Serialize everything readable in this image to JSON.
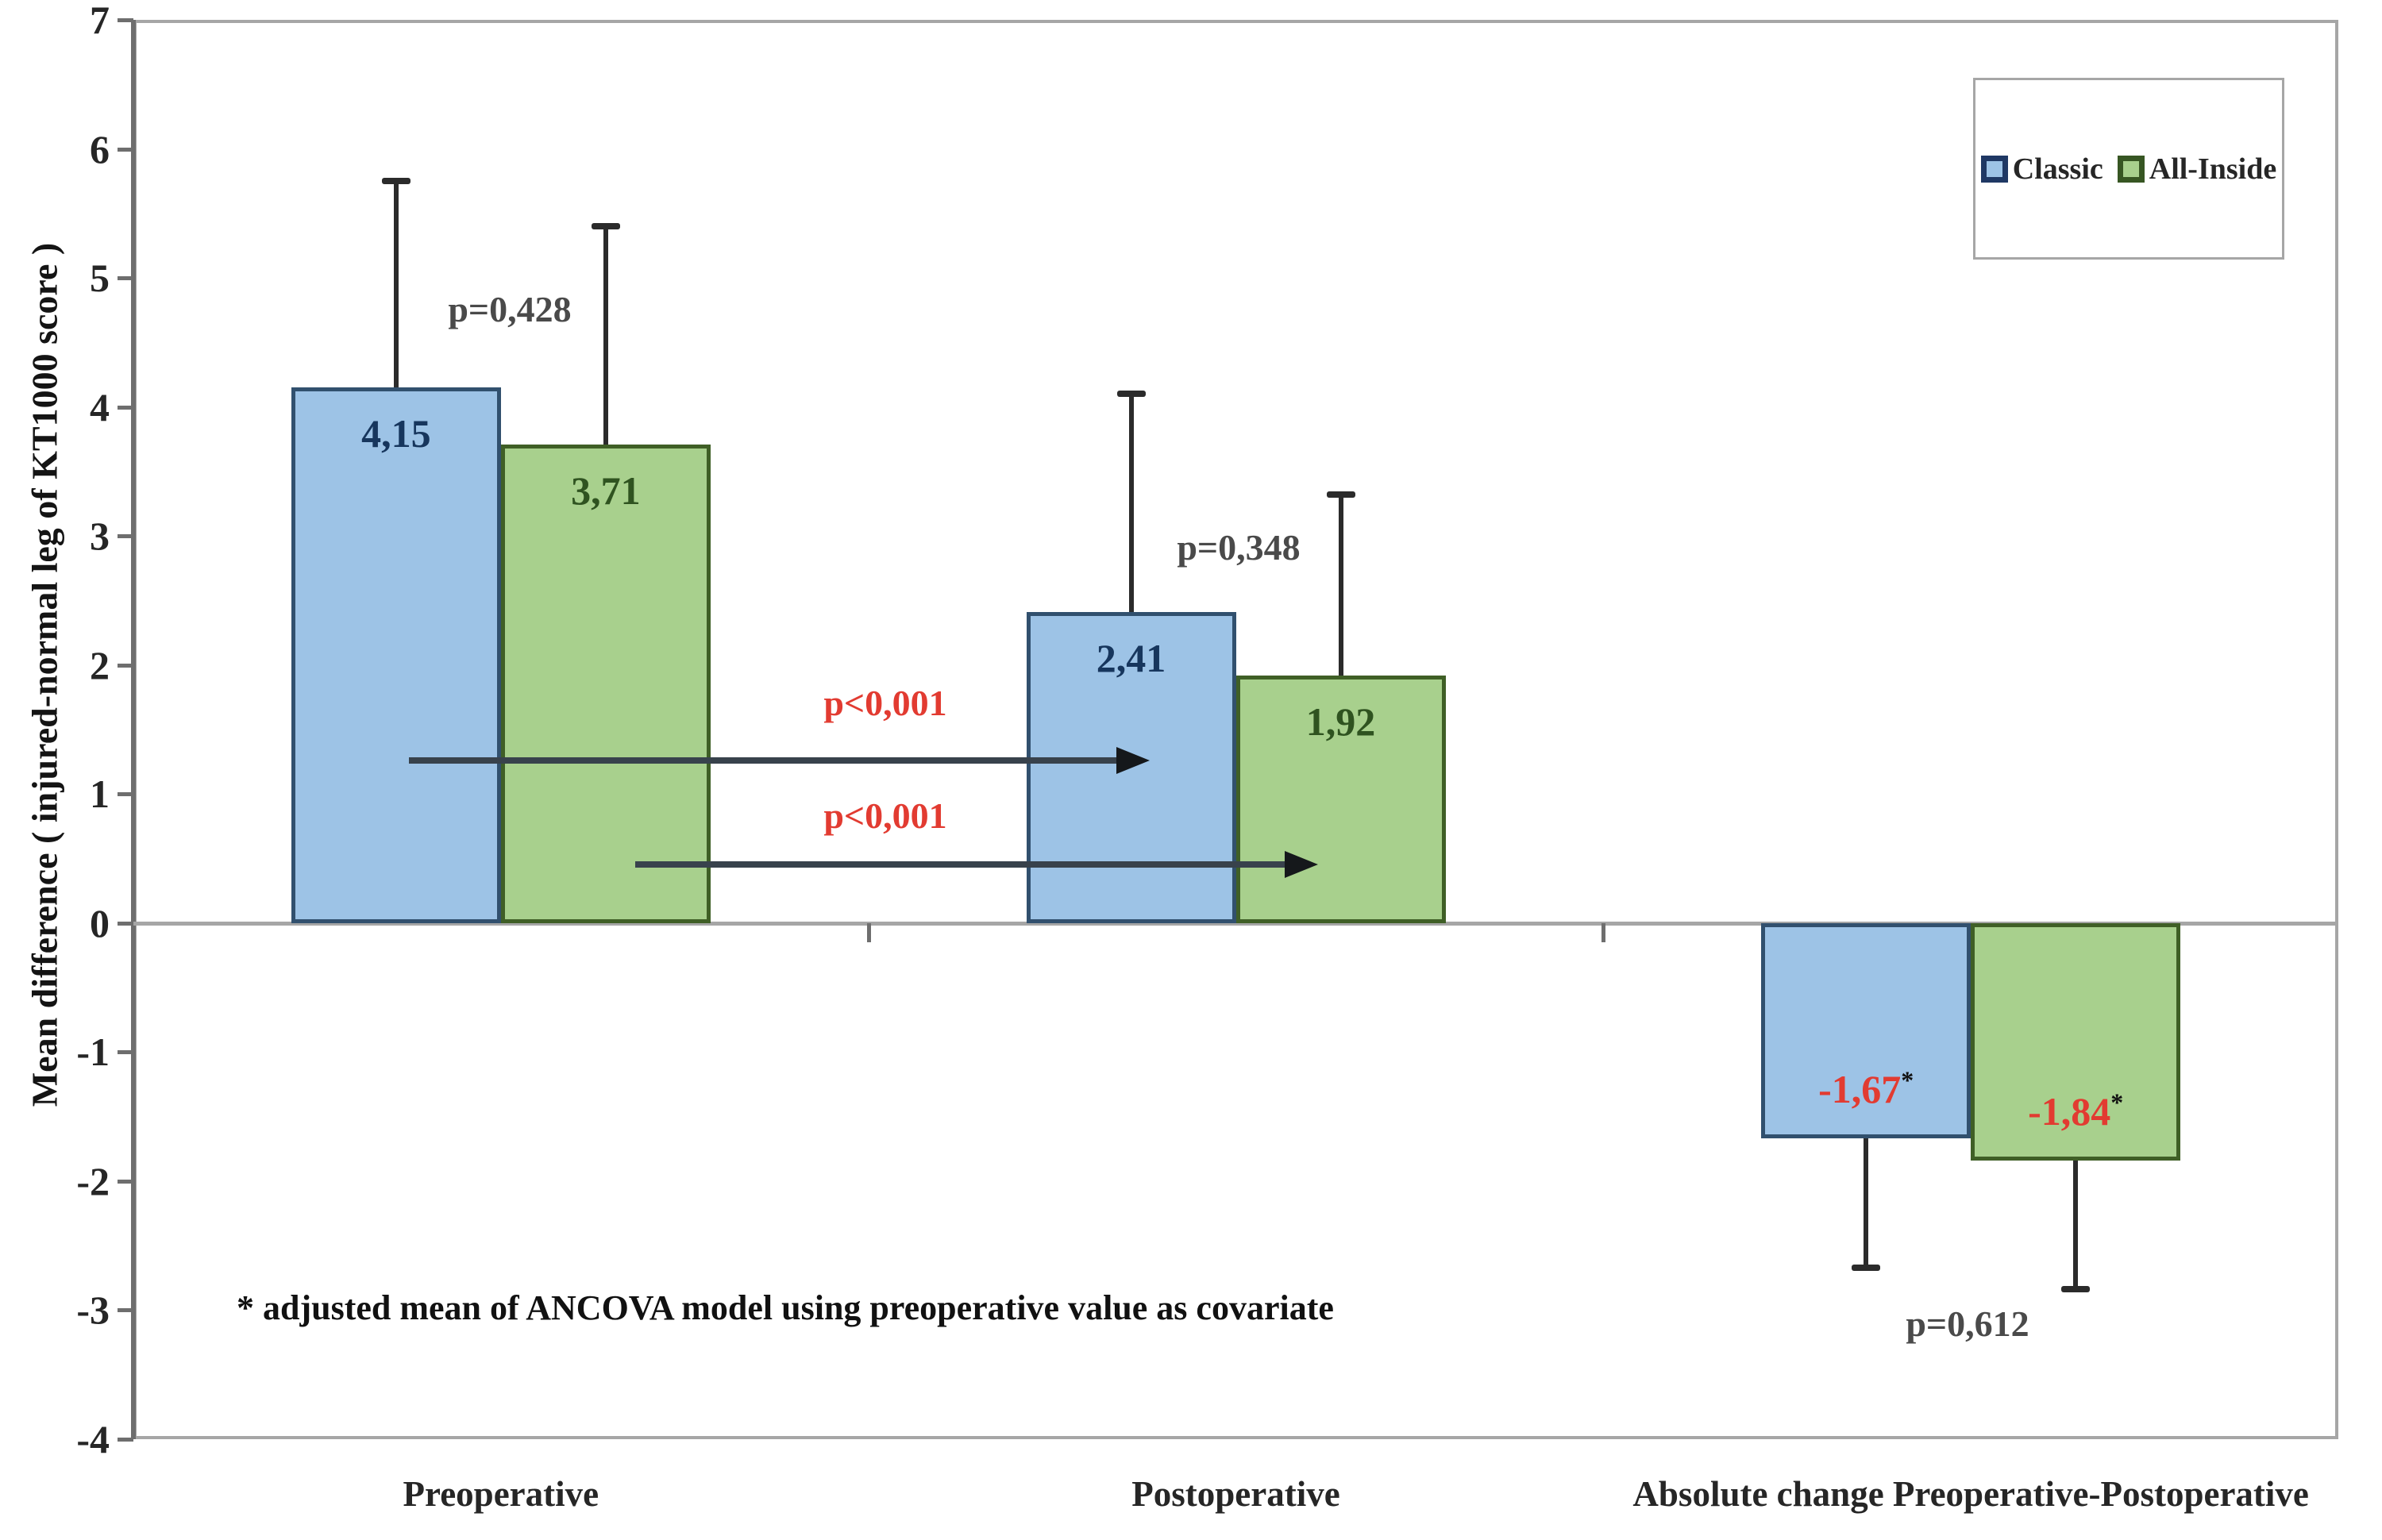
{
  "chart_data": {
    "type": "bar",
    "title": "",
    "ylabel": "Mean difference ( injured-normal leg of KT1000 score )",
    "xlabel": "",
    "ylim": [
      -4,
      7
    ],
    "ytick_step": 1,
    "grid": "zero-line-only",
    "legend_position": "top-right",
    "categories": [
      "Preoperative",
      "Postoperative",
      "Absolute change Preoperative-Postoperative"
    ],
    "series": [
      {
        "name": "Classic",
        "values": [
          4.15,
          2.41,
          -1.67
        ],
        "value_labels": [
          "4,15",
          "2,41",
          "-1,67*"
        ],
        "error_tips": [
          5.75,
          4.1,
          -2.67
        ],
        "fill": "#9DC3E6",
        "border": "#31506E",
        "label_color": "#17365D",
        "marker_border": "#1F3864"
      },
      {
        "name": "All-Inside",
        "values": [
          3.71,
          1.92,
          -1.84
        ],
        "value_labels": [
          "3,71",
          "1,92",
          "-1,84*"
        ],
        "error_tips": [
          5.4,
          3.32,
          -2.84
        ],
        "fill": "#A8D08D",
        "border": "#3F5F26",
        "label_color": "#2F5320",
        "marker_border": "#375623"
      }
    ],
    "starred_value_color": "#E23B31",
    "star_color": "#111111",
    "annotations": [
      {
        "id": "p-preoperative",
        "text": "p=0,428",
        "x": 642,
        "y": 390,
        "color": "#4A4A4A"
      },
      {
        "id": "p-postoperative",
        "text": "p=0,348",
        "x": 1560,
        "y": 690,
        "color": "#4A4A4A"
      },
      {
        "id": "p-absolute-change",
        "text": "p=0,612",
        "x": 2478,
        "y": 1668,
        "color": "#4A4A4A"
      },
      {
        "id": "p-classic-arrow",
        "text": "p<0,001",
        "x": 1115,
        "y": 886,
        "color": "#E23B31"
      },
      {
        "id": "p-allinside-arrow",
        "text": "p<0,001",
        "x": 1115,
        "y": 1028,
        "color": "#E23B31"
      }
    ],
    "arrows": [
      {
        "id": "arrow-classic",
        "x1": 515,
        "x2": 1448,
        "y": 958
      },
      {
        "id": "arrow-allinside",
        "x1": 800,
        "x2": 1660,
        "y": 1089
      }
    ],
    "footnote": "* adjusted mean of ANCOVA model using preoperative value as covariate",
    "error_bar_color": "#2B2B2B",
    "axis_color": "#6E6E6E",
    "frame_color": "#A6A6A6"
  }
}
